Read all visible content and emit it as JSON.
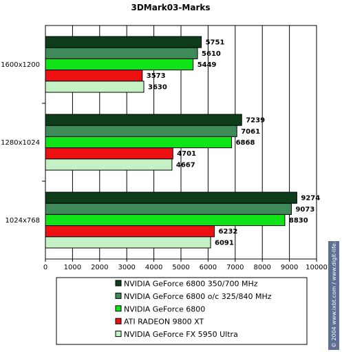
{
  "watermark": "© 2004 www.ixbt.com / www.digit-life.com",
  "chart_data": {
    "type": "bar",
    "orientation": "horizontal",
    "title": "3DMark03-Marks",
    "xlabel": "",
    "ylabel": "",
    "categories": [
      "1600x1200",
      "1280x1024",
      "1024x768"
    ],
    "xlim": [
      0,
      10000
    ],
    "xticks": [
      0,
      1000,
      2000,
      3000,
      4000,
      5000,
      6000,
      7000,
      8000,
      9000,
      10000
    ],
    "grid": "vertical",
    "legend_position": "bottom",
    "series": [
      {
        "name": "NVIDIA GeForce 6800 350/700 MHz",
        "color": "#0e3d1c",
        "values": [
          5751,
          7239,
          9274
        ]
      },
      {
        "name": "NVIDIA GeForce 6800 o/c 325/840 MHz",
        "color": "#3e8a58",
        "values": [
          5610,
          7061,
          9073
        ]
      },
      {
        "name": "NVIDIA GeForce 6800",
        "color": "#10e418",
        "values": [
          5449,
          6868,
          8830
        ]
      },
      {
        "name": "ATI RADEON 9800 XT",
        "color": "#ee1111",
        "values": [
          3573,
          4701,
          6232
        ]
      },
      {
        "name": "NVIDIA GeForce FX 5950 Ultra",
        "color": "#c4f2c4",
        "values": [
          3630,
          4667,
          6091
        ]
      }
    ]
  }
}
